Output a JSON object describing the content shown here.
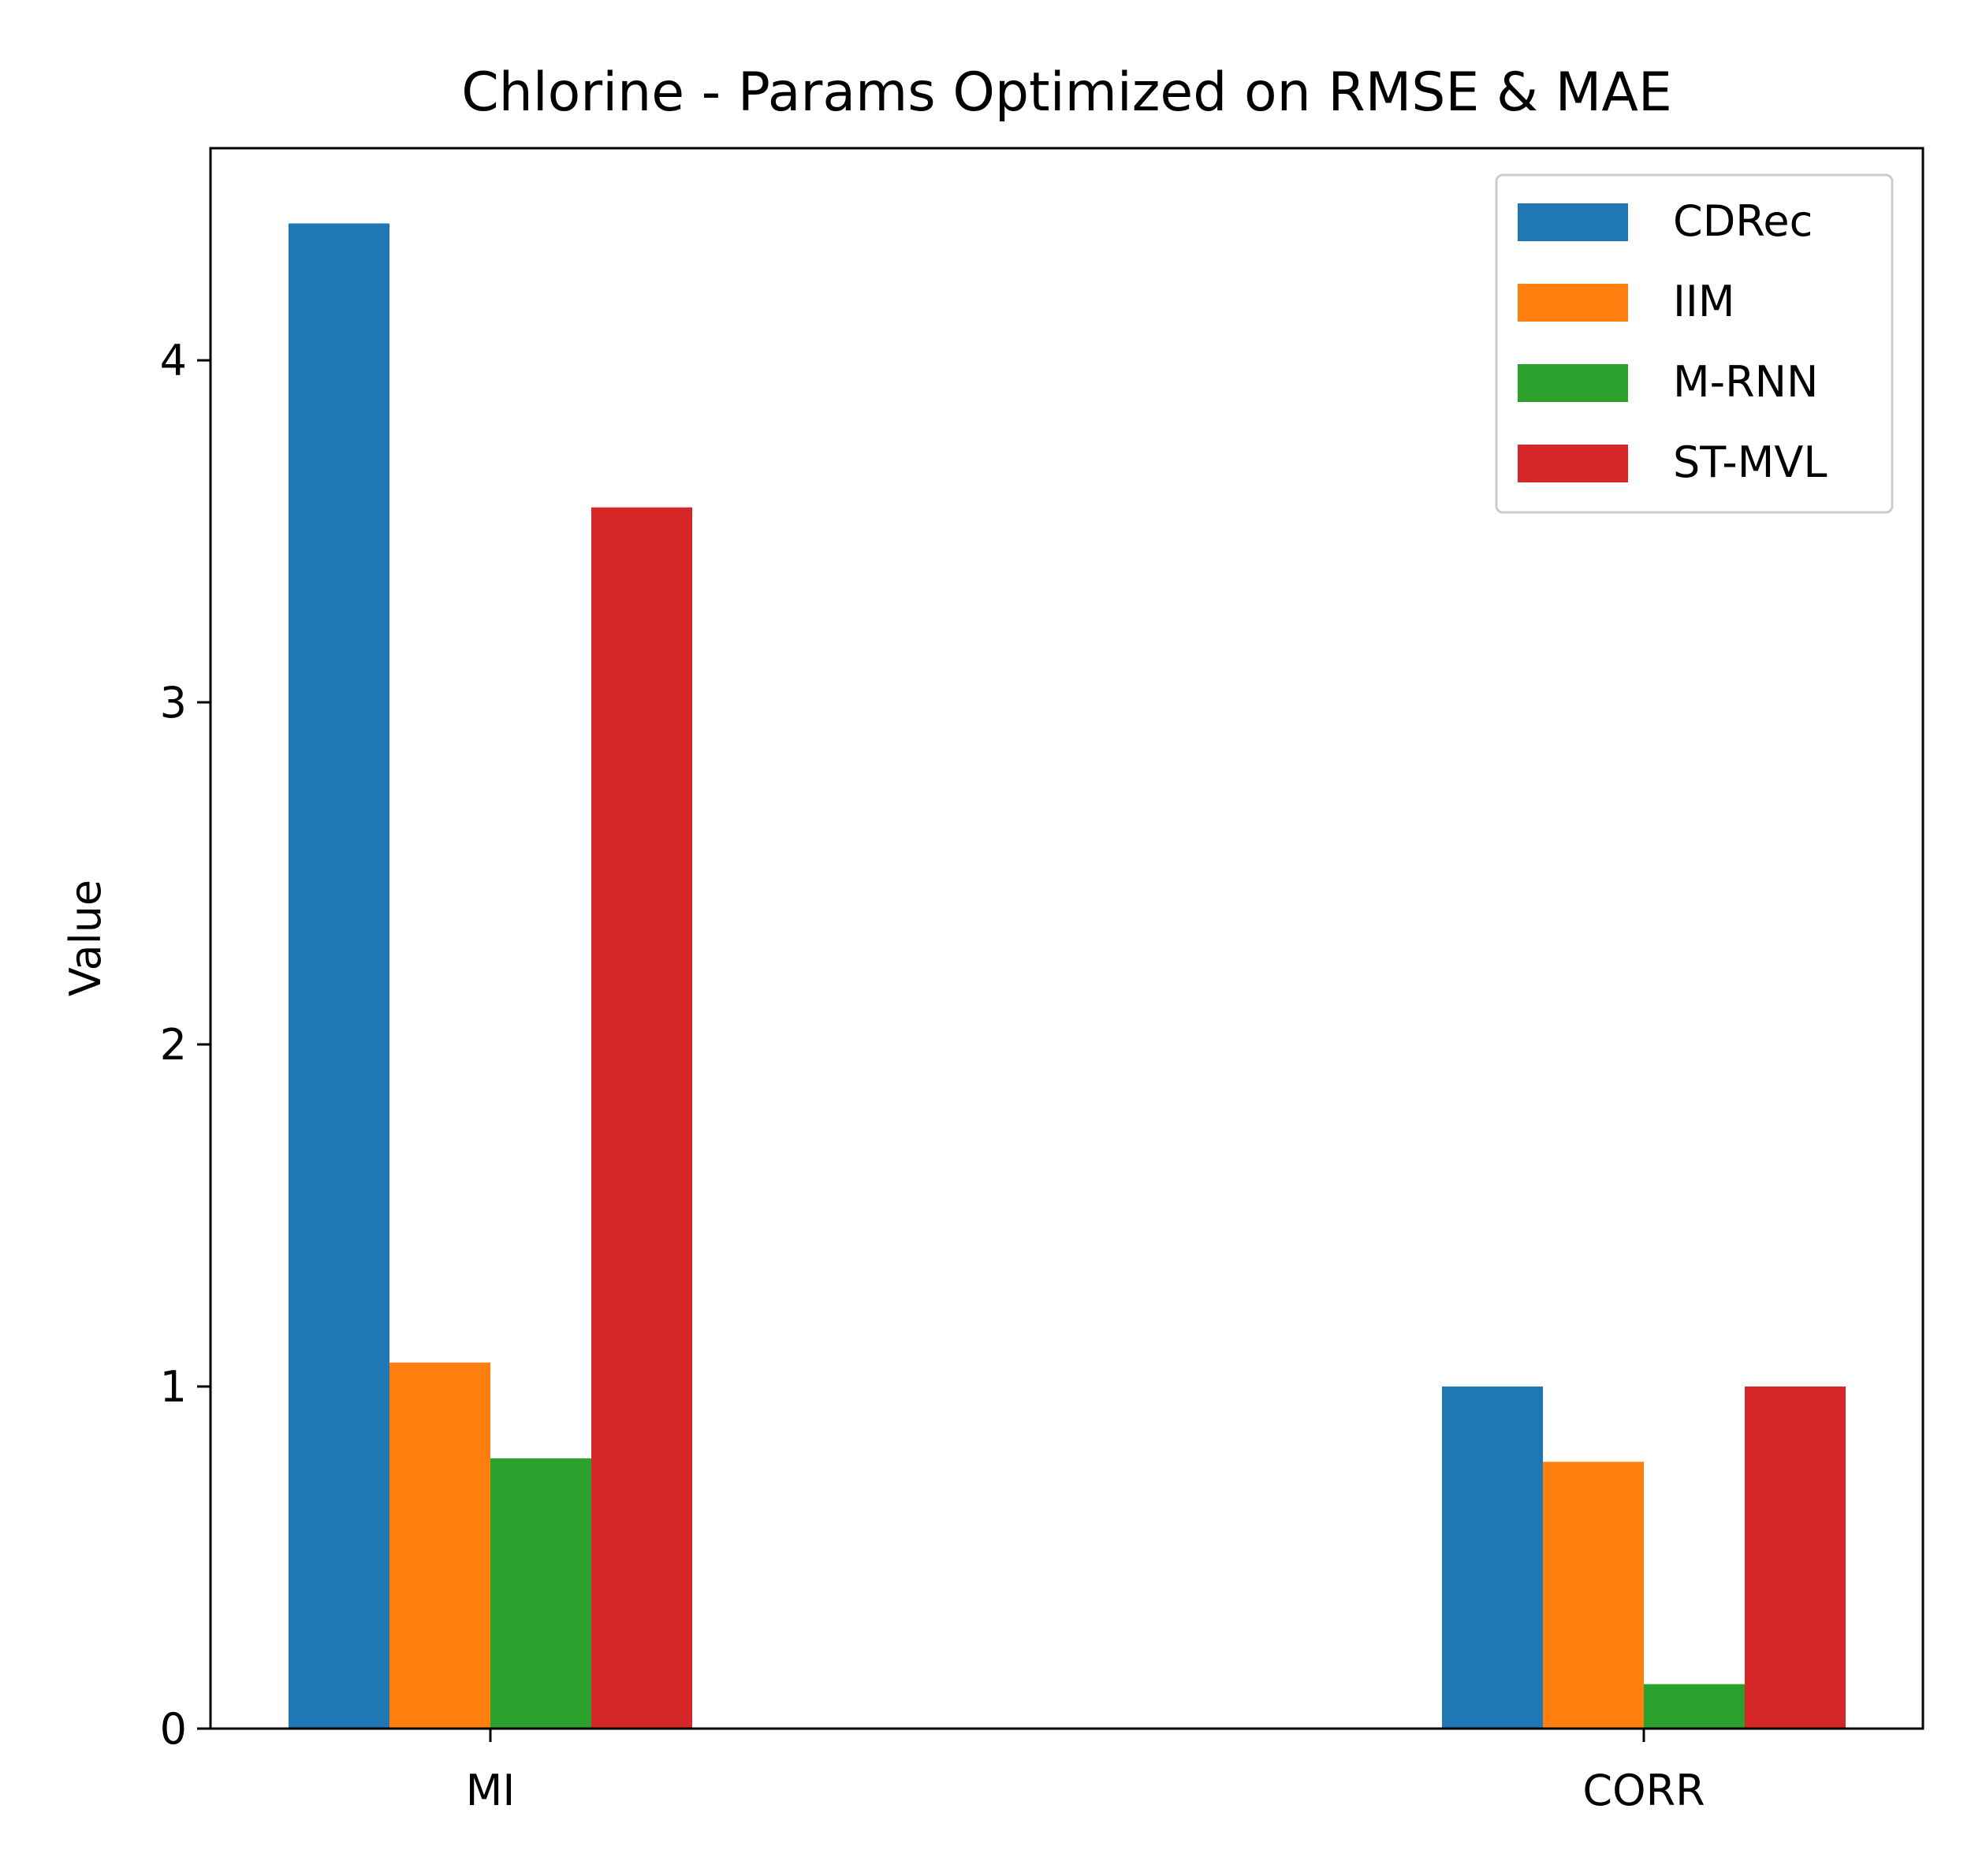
{
  "chart_data": {
    "type": "bar",
    "title": "Chlorine - Params Optimized on RMSE & MAE",
    "xlabel": "",
    "ylabel": "Value",
    "categories": [
      "MI",
      "CORR"
    ],
    "series": [
      {
        "name": "CDRec",
        "color": "#1f77b4",
        "values": [
          4.4,
          1.0
        ]
      },
      {
        "name": "IIM",
        "color": "#ff7f0e",
        "values": [
          1.07,
          0.78
        ]
      },
      {
        "name": "M-RNN",
        "color": "#2ca02c",
        "values": [
          0.79,
          0.13
        ]
      },
      {
        "name": "ST-MVL",
        "color": "#d62728",
        "values": [
          3.57,
          1.0
        ]
      }
    ],
    "ylim": [
      0,
      4.62
    ],
    "yticks": [
      0,
      1,
      2,
      3,
      4
    ],
    "grid": false,
    "legend_position": "top-right"
  }
}
